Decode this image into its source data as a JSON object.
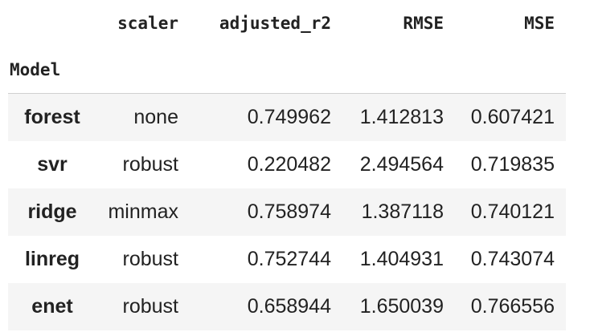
{
  "table": {
    "columns": [
      "scaler",
      "adjusted_r2",
      "RMSE",
      "MSE"
    ],
    "index_name": "Model",
    "rows": [
      {
        "model": "forest",
        "scaler": "none",
        "adjusted_r2": "0.749962",
        "RMSE": "1.412813",
        "MSE": "0.607421"
      },
      {
        "model": "svr",
        "scaler": "robust",
        "adjusted_r2": "0.220482",
        "RMSE": "2.494564",
        "MSE": "0.719835"
      },
      {
        "model": "ridge",
        "scaler": "minmax",
        "adjusted_r2": "0.758974",
        "RMSE": "1.387118",
        "MSE": "0.740121"
      },
      {
        "model": "linreg",
        "scaler": "robust",
        "adjusted_r2": "0.752744",
        "RMSE": "1.404931",
        "MSE": "0.743074"
      },
      {
        "model": "enet",
        "scaler": "robust",
        "adjusted_r2": "0.658944",
        "RMSE": "1.650039",
        "MSE": "0.766556"
      }
    ]
  }
}
